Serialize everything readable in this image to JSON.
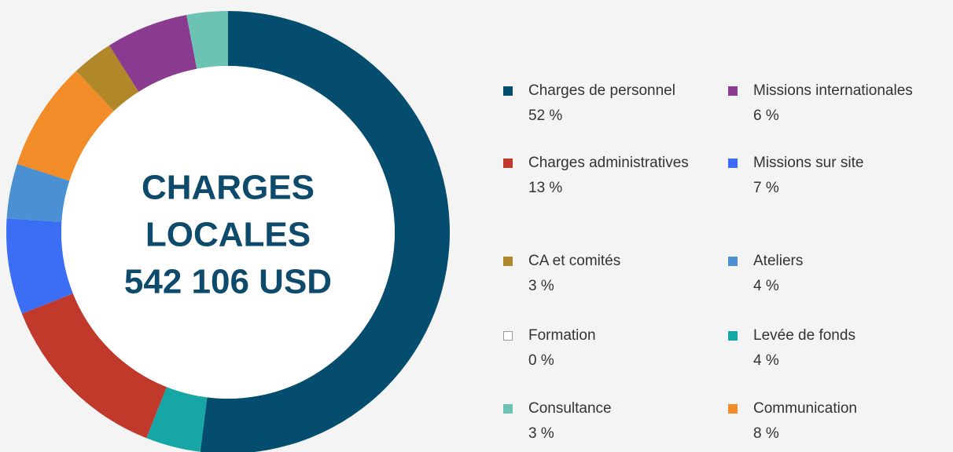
{
  "chart_data": {
    "type": "donut",
    "center_label": [
      "CHARGES",
      "LOCALES",
      "542 106 USD"
    ],
    "categories": [
      "Charges de personnel",
      "Levée de fonds",
      "Charges administratives",
      "Missions sur site",
      "Ateliers",
      "Communication",
      "CA et comités",
      "Missions internationales",
      "Consultance",
      "Formation"
    ],
    "values": [
      52,
      4,
      13,
      7,
      4,
      8,
      3,
      6,
      3,
      0
    ],
    "value_labels": [
      "52 %",
      "4 %",
      "13 %",
      "7 %",
      "4 %",
      "8 %",
      "3 %",
      "6 %",
      "3 %",
      "0 %"
    ],
    "colors": [
      "#054d6f",
      "#17a6a6",
      "#c0392b",
      "#3c6ef5",
      "#4a90d2",
      "#f28c28",
      "#b0882a",
      "#8a3b8f",
      "#6cc3b3",
      "#ffffff"
    ]
  }
}
